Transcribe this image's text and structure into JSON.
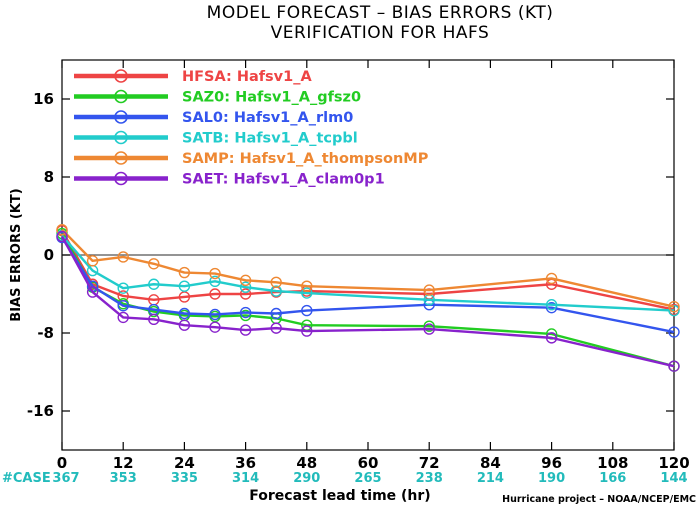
{
  "chart_data": {
    "type": "line",
    "title": "MODEL FORECAST – BIAS ERRORS (KT)",
    "subtitle": "VERIFICATION FOR HAFS",
    "xlabel": "Forecast lead time (hr)",
    "ylabel": "BIAS ERRORS (KT)",
    "xlim": [
      0,
      120
    ],
    "ylim": [
      -20,
      20
    ],
    "x_ticks": [
      0,
      12,
      24,
      36,
      48,
      60,
      72,
      84,
      96,
      108,
      120
    ],
    "y_ticks": [
      -16,
      -8,
      0,
      8,
      16
    ],
    "zero_line": true,
    "legend_placement": "top-left",
    "case_label": "#CASE",
    "case_counts": [
      "367",
      "353",
      "335",
      "314",
      "290",
      "265",
      "238",
      "214",
      "190",
      "166",
      "144"
    ],
    "footer": "Hurricane project – NOAA/NCEP/EMC",
    "x": [
      0,
      6,
      12,
      18,
      24,
      30,
      36,
      42,
      48,
      72,
      96,
      120
    ],
    "series": [
      {
        "name": "HFSA:  Hafsv1_A",
        "color": "#ee4444",
        "x": [
          0,
          6,
          12,
          18,
          24,
          30,
          36,
          42,
          48,
          72,
          96,
          120
        ],
        "values": [
          2.5,
          -3.0,
          -4.2,
          -4.6,
          -4.3,
          -4.0,
          -4.0,
          -3.8,
          -3.7,
          -4.0,
          -3.0,
          -5.6
        ]
      },
      {
        "name": "SAZ0:  Hafsv1_A_gfsz0",
        "color": "#22cc22",
        "x": [
          0,
          6,
          12,
          18,
          24,
          30,
          36,
          42,
          48,
          72,
          96,
          120
        ],
        "values": [
          2.2,
          -3.3,
          -5.0,
          -5.8,
          -6.2,
          -6.3,
          -6.2,
          -6.5,
          -7.2,
          -7.3,
          -8.1,
          -11.4
        ]
      },
      {
        "name": "SAL0:  Hafsv1_A_rlm0",
        "color": "#3355ee",
        "x": [
          0,
          6,
          12,
          18,
          24,
          30,
          36,
          42,
          48,
          72,
          96,
          120
        ],
        "values": [
          1.8,
          -3.2,
          -5.2,
          -5.6,
          -6.0,
          -6.1,
          -5.9,
          -6.0,
          -5.7,
          -5.1,
          -5.4,
          -7.9
        ]
      },
      {
        "name": "SATB:  Hafsv1_A_tcpbl",
        "color": "#22cccc",
        "x": [
          0,
          6,
          12,
          18,
          24,
          30,
          36,
          42,
          48,
          72,
          96,
          120
        ],
        "values": [
          2.0,
          -1.6,
          -3.4,
          -3.0,
          -3.2,
          -2.7,
          -3.3,
          -3.7,
          -3.9,
          -4.6,
          -5.1,
          -5.7
        ]
      },
      {
        "name": "SAMP:  Hafsv1_A_thompsonMP",
        "color": "#ee8833",
        "x": [
          0,
          6,
          12,
          18,
          24,
          30,
          36,
          42,
          48,
          72,
          96,
          120
        ],
        "values": [
          2.6,
          -0.6,
          -0.2,
          -0.9,
          -1.8,
          -1.9,
          -2.6,
          -2.8,
          -3.2,
          -3.6,
          -2.4,
          -5.3
        ]
      },
      {
        "name": "SAET:  Hafsv1_A_clam0p1",
        "color": "#8822cc",
        "x": [
          0,
          6,
          12,
          18,
          24,
          30,
          36,
          42,
          48,
          72,
          96,
          120
        ],
        "values": [
          1.9,
          -3.8,
          -6.4,
          -6.6,
          -7.2,
          -7.4,
          -7.7,
          -7.5,
          -7.8,
          -7.6,
          -8.5,
          -11.4
        ]
      }
    ]
  }
}
